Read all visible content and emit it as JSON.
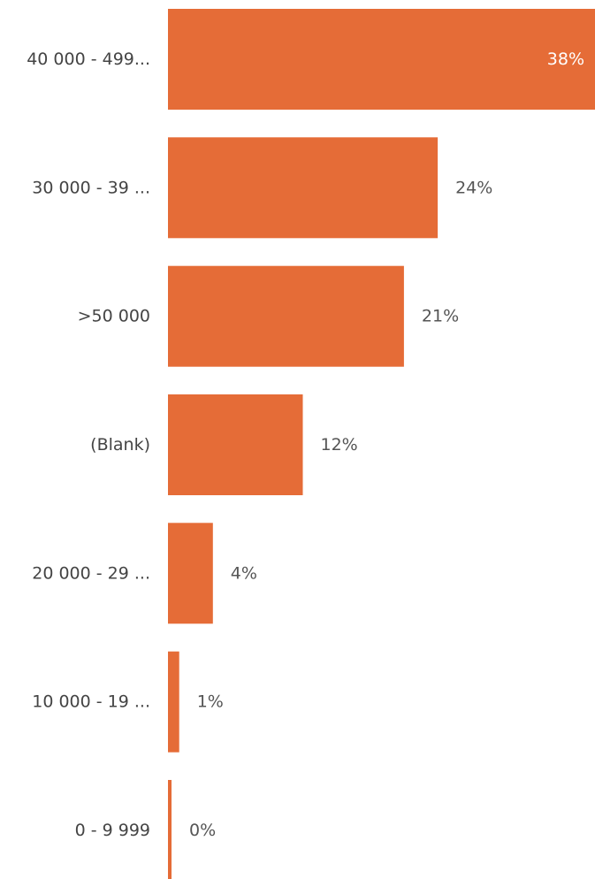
{
  "chart_data": {
    "type": "bar",
    "orientation": "horizontal",
    "categories": [
      "40 000 - 499...",
      "30 000 - 39 ...",
      ">50 000",
      "(Blank)",
      "20 000 - 29 ...",
      "10 000 - 19 ...",
      "0 - 9 999"
    ],
    "values": [
      38,
      24,
      21,
      12,
      4,
      1,
      0
    ],
    "value_labels": [
      "38%",
      "24%",
      "21%",
      "12%",
      "4%",
      "1%",
      "0%"
    ],
    "unit": "%",
    "title": "",
    "xlabel": "",
    "ylabel": "",
    "xlim": [
      0,
      38
    ],
    "grid": false,
    "legend": "none",
    "colors": {
      "bar": "#E56C37",
      "category_text": "#444444",
      "value_text_outside": "#555555",
      "value_text_inside": "#ffffff"
    }
  }
}
